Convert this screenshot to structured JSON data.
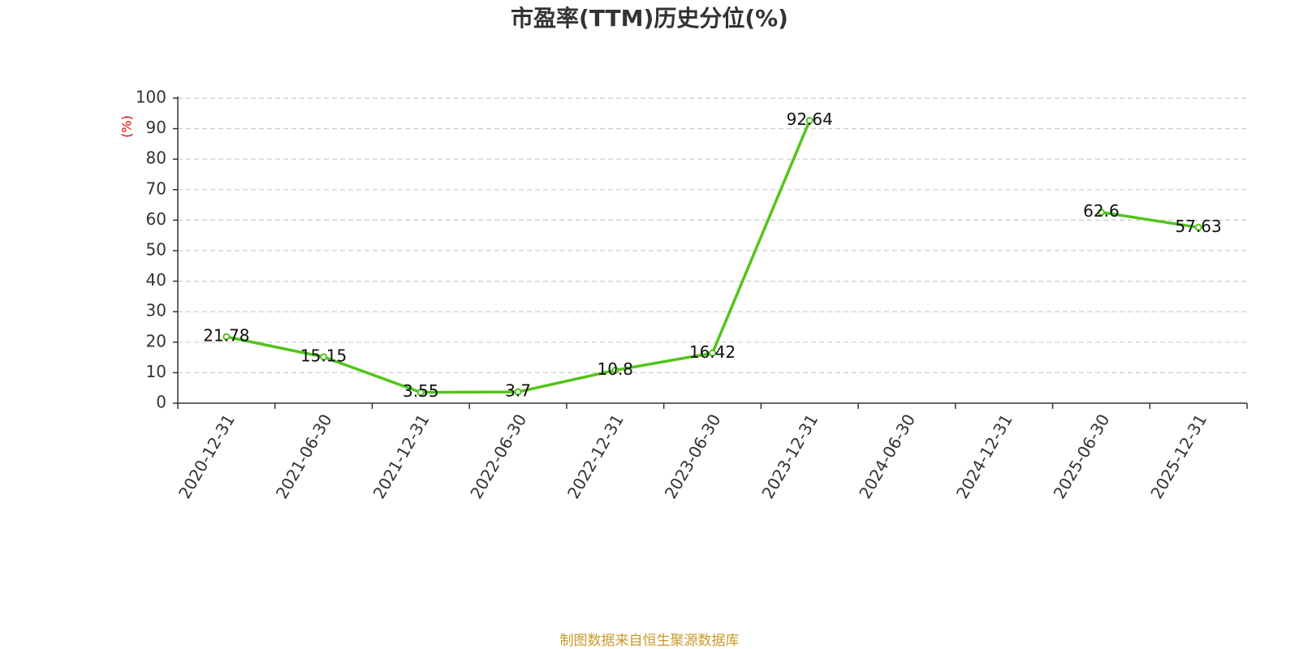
{
  "chart_data": {
    "type": "line",
    "title": "市盈率(TTM)历史分位(%)",
    "y_label": "(%)",
    "source": "制图数据来自恒生聚源数据库",
    "categories": [
      "2020-12-31",
      "2021-06-30",
      "2021-12-31",
      "2022-06-30",
      "2022-12-31",
      "2023-06-30",
      "2023-12-31",
      "2024-06-30",
      "2024-12-31",
      "2025-06-30",
      "2025-12-31"
    ],
    "values": [
      21.78,
      15.15,
      3.55,
      3.7,
      10.8,
      16.42,
      92.64,
      null,
      null,
      62.6,
      57.63
    ],
    "color": "#52c41a",
    "ylim": [
      0,
      100
    ],
    "yticks": [
      0,
      10,
      20,
      30,
      40,
      50,
      60,
      70,
      80,
      90,
      100
    ],
    "grid": true
  }
}
